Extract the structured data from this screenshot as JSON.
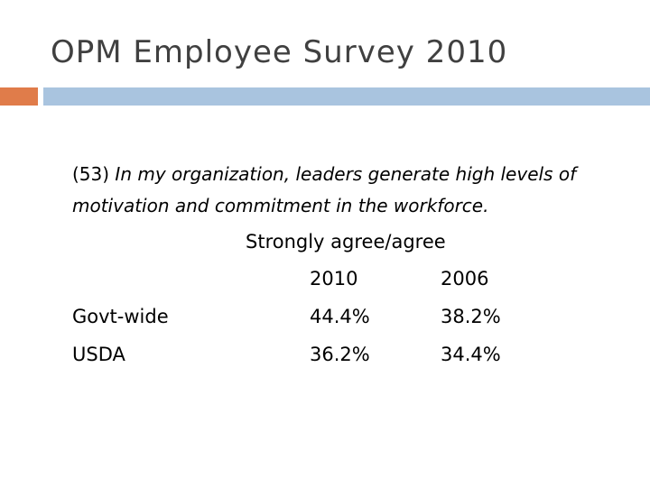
{
  "slide": {
    "title": "OPM Employee Survey 2010",
    "question_number": "(53)",
    "question_text": "In my organization, leaders generate high levels of motivation and commitment in the workforce.",
    "response_header": "Strongly agree/agree",
    "columns": [
      "2010",
      "2006"
    ],
    "rows": [
      {
        "label": "Govt-wide",
        "values": [
          "44.4%",
          "38.2%"
        ]
      },
      {
        "label": "USDA",
        "values": [
          "36.2%",
          "34.4%"
        ]
      }
    ]
  },
  "colors": {
    "title": "#404040",
    "accent": "#e07c4a",
    "bar": "#a9c4df"
  }
}
